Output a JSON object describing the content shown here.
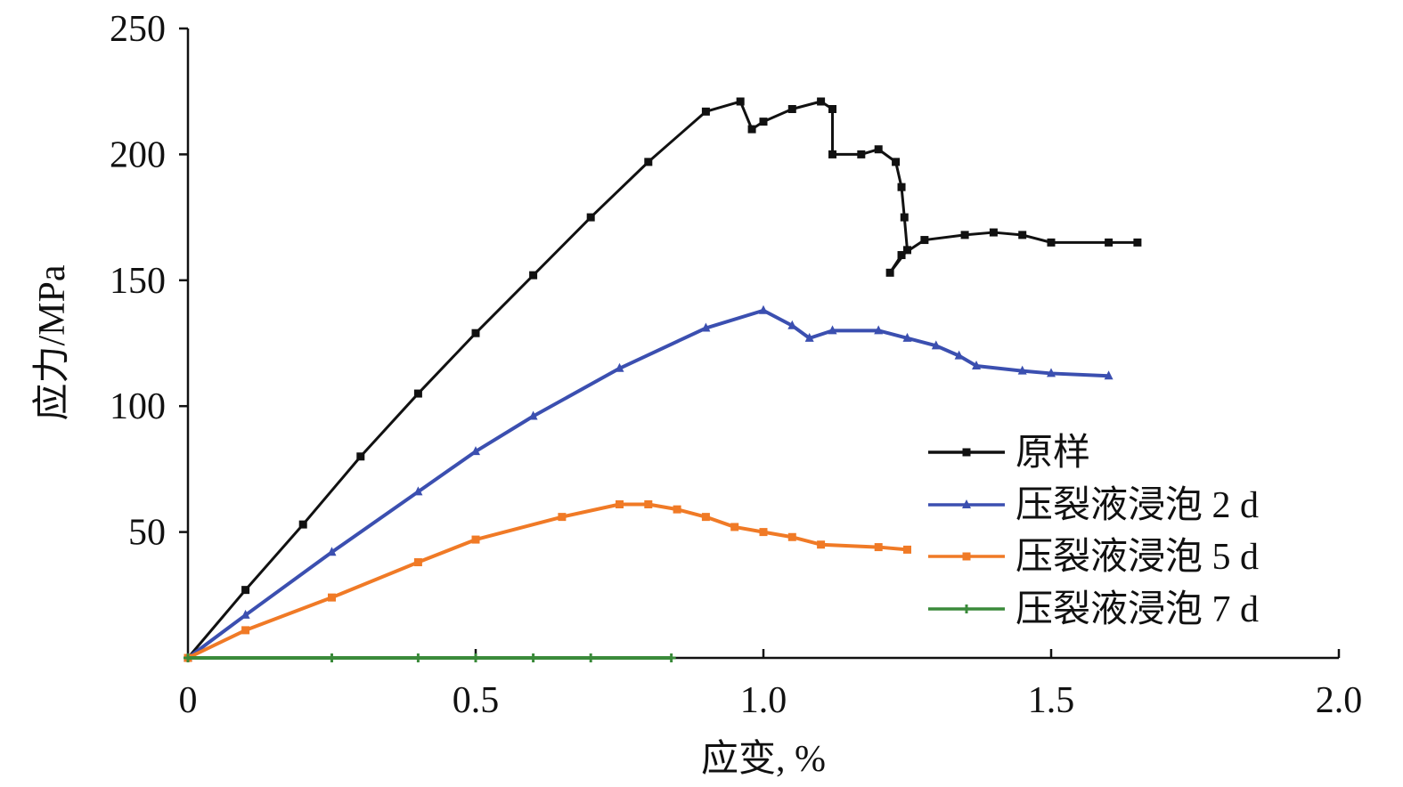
{
  "chart_data": {
    "type": "line",
    "title": "",
    "xlabel": "应变, %",
    "ylabel": "应力/MPa",
    "xlim": [
      0,
      2.0
    ],
    "ylim": [
      0,
      250
    ],
    "xticks": [
      "0",
      "0.5",
      "1.0",
      "1.5",
      "2.0"
    ],
    "xtick_values": [
      0,
      0.5,
      1.0,
      1.5,
      2.0
    ],
    "yticks": [
      "50",
      "100",
      "150",
      "200",
      "250"
    ],
    "ytick_values": [
      50,
      100,
      150,
      200,
      250
    ],
    "grid": false,
    "legend_position": "bottom-right",
    "series": [
      {
        "name": "原样",
        "color": "#111111",
        "marker": "square",
        "x": [
          0,
          0.1,
          0.2,
          0.3,
          0.4,
          0.5,
          0.6,
          0.7,
          0.8,
          0.9,
          0.96,
          0.98,
          1.0,
          1.05,
          1.1,
          1.12,
          1.12,
          1.17,
          1.2,
          1.23,
          1.24,
          1.245,
          1.25,
          1.22,
          1.24,
          1.28,
          1.35,
          1.4,
          1.45,
          1.5,
          1.6,
          1.65
        ],
        "y": [
          0,
          27,
          53,
          80,
          105,
          129,
          152,
          175,
          197,
          217,
          221,
          210,
          213,
          218,
          221,
          218,
          200,
          200,
          202,
          197,
          187,
          175,
          162,
          153,
          160,
          166,
          168,
          169,
          168,
          165,
          165,
          165
        ]
      },
      {
        "name": "压裂液浸泡 2 d",
        "color": "#3b4fb0",
        "marker": "triangle",
        "x": [
          0,
          0.1,
          0.25,
          0.4,
          0.5,
          0.6,
          0.75,
          0.9,
          1.0,
          1.05,
          1.08,
          1.12,
          1.2,
          1.25,
          1.3,
          1.34,
          1.37,
          1.45,
          1.5,
          1.6
        ],
        "y": [
          0,
          17,
          42,
          66,
          82,
          96,
          115,
          131,
          138,
          132,
          127,
          130,
          130,
          127,
          124,
          120,
          116,
          114,
          113,
          112
        ]
      },
      {
        "name": "压裂液浸泡 5 d",
        "color": "#f07a26",
        "marker": "square",
        "x": [
          0,
          0.1,
          0.25,
          0.4,
          0.5,
          0.65,
          0.75,
          0.8,
          0.85,
          0.9,
          0.95,
          1.0,
          1.05,
          1.1,
          1.2,
          1.25
        ],
        "y": [
          0,
          11,
          24,
          38,
          47,
          56,
          61,
          61,
          59,
          56,
          52,
          50,
          48,
          45,
          44,
          43
        ]
      },
      {
        "name": "压裂液浸泡 7 d",
        "color": "#3a8a3a",
        "marker": "plus",
        "x": [
          0,
          0.25,
          0.4,
          0.5,
          0.6,
          0.7,
          0.84
        ],
        "y": [
          0,
          0,
          0,
          0,
          0,
          0,
          0
        ]
      }
    ]
  }
}
